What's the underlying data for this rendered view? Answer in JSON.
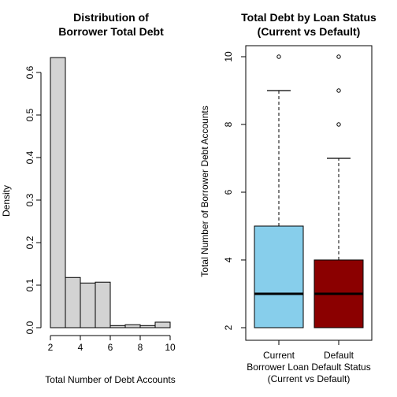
{
  "chart_data": [
    {
      "type": "histogram",
      "title_lines": [
        "Distribution of",
        "Borrower Total Debt"
      ],
      "xlabel": "Total Number of Debt Accounts",
      "ylabel": "Density",
      "xlim": [
        2,
        10
      ],
      "ylim": [
        0,
        0.6
      ],
      "x_ticks": [
        2,
        4,
        6,
        8,
        10
      ],
      "y_ticks": [
        0.0,
        0.1,
        0.2,
        0.3,
        0.4,
        0.5,
        0.6
      ],
      "y_tick_labels": [
        "0.0",
        "0.1",
        "0.2",
        "0.3",
        "0.4",
        "0.5",
        "0.6"
      ],
      "bar_color": "#d3d3d3",
      "bins": [
        {
          "from": 2,
          "to": 3,
          "density": 0.635
        },
        {
          "from": 3,
          "to": 4,
          "density": 0.118
        },
        {
          "from": 4,
          "to": 5,
          "density": 0.105
        },
        {
          "from": 5,
          "to": 6,
          "density": 0.107
        },
        {
          "from": 6,
          "to": 7,
          "density": 0.005
        },
        {
          "from": 7,
          "to": 8,
          "density": 0.007
        },
        {
          "from": 8,
          "to": 9,
          "density": 0.005
        },
        {
          "from": 9,
          "to": 10,
          "density": 0.013
        }
      ]
    },
    {
      "type": "boxplot",
      "title_lines": [
        "Total Debt by Loan Status",
        "(Current vs Default)"
      ],
      "xlabel_lines": [
        "Borrower Loan Default Status",
        "(Current vs Default)"
      ],
      "ylabel": "Total Number of Borrower Debt Accounts",
      "ylim": [
        2,
        10
      ],
      "y_ticks": [
        2,
        4,
        6,
        8,
        10
      ],
      "categories": [
        "Current",
        "Default"
      ],
      "boxes": [
        {
          "name": "Current",
          "min": 2,
          "q1": 2,
          "median": 3,
          "q3": 5,
          "max": 9,
          "outliers": [
            10
          ],
          "color": "#87ceeb"
        },
        {
          "name": "Default",
          "min": 2,
          "q1": 2,
          "median": 3,
          "q3": 4,
          "max": 7,
          "outliers": [
            8,
            9,
            10
          ],
          "color": "#8b0000"
        }
      ]
    }
  ]
}
